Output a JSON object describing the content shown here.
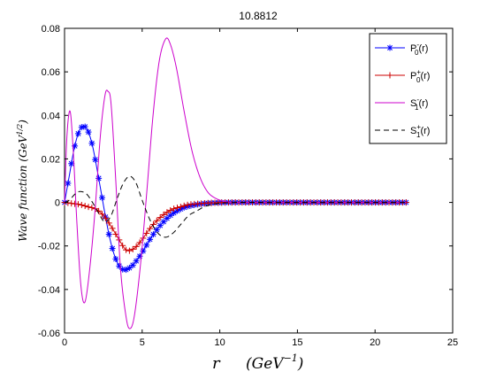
{
  "chart_data": {
    "type": "line",
    "title": "10.8812",
    "xlabel": "r (GeV^-1)",
    "ylabel": "Wave function (GeV^1/2)",
    "xlim": [
      0,
      25
    ],
    "ylim": [
      -0.06,
      0.08
    ],
    "xticks": [
      "0",
      "5",
      "10",
      "15",
      "20",
      "25"
    ],
    "yticks": [
      "-0.06",
      "-0.04",
      "-0.02",
      "0",
      "0.02",
      "0.04",
      "0.06",
      "0.08"
    ],
    "grid": false,
    "legend": "top-right",
    "series": [
      {
        "name": "P0-(r)",
        "name_main": "P",
        "name_sup": "-",
        "name_sub": "0",
        "name_arg": "(r)",
        "color": "#0000ff",
        "line": "solid",
        "marker": "star",
        "points": [
          [
            0,
            0
          ],
          [
            0.3,
            0.012
          ],
          [
            0.6,
            0.024
          ],
          [
            0.9,
            0.032
          ],
          [
            1.2,
            0.035
          ],
          [
            1.5,
            0.033
          ],
          [
            1.8,
            0.026
          ],
          [
            2.1,
            0.015
          ],
          [
            2.4,
            0.003
          ],
          [
            2.7,
            -0.009
          ],
          [
            3.0,
            -0.019
          ],
          [
            3.3,
            -0.026
          ],
          [
            3.6,
            -0.03
          ],
          [
            3.9,
            -0.031
          ],
          [
            4.2,
            -0.03
          ],
          [
            4.5,
            -0.028
          ],
          [
            5.0,
            -0.023
          ],
          [
            5.5,
            -0.017
          ],
          [
            6.0,
            -0.012
          ],
          [
            6.5,
            -0.008
          ],
          [
            7.0,
            -0.005
          ],
          [
            7.5,
            -0.003
          ],
          [
            8.0,
            -0.0017
          ],
          [
            9.0,
            -0.0005
          ],
          [
            10.0,
            -0.0001
          ],
          [
            11.0,
            0
          ],
          [
            13,
            0
          ],
          [
            15,
            0
          ],
          [
            17,
            0
          ],
          [
            19,
            0
          ],
          [
            21,
            0
          ],
          [
            22,
            0
          ]
        ]
      },
      {
        "name": "P0+(r)",
        "name_main": "P",
        "name_sup": "+",
        "name_sub": "0",
        "name_arg": "(r)",
        "color": "#cc0000",
        "line": "solid",
        "marker": "plus",
        "points": [
          [
            0,
            0
          ],
          [
            0.5,
            -0.0005
          ],
          [
            1.0,
            -0.001
          ],
          [
            1.5,
            -0.002
          ],
          [
            2.0,
            -0.003
          ],
          [
            2.5,
            -0.006
          ],
          [
            3.0,
            -0.011
          ],
          [
            3.5,
            -0.017
          ],
          [
            4.0,
            -0.022
          ],
          [
            4.5,
            -0.021
          ],
          [
            5.0,
            -0.017
          ],
          [
            5.5,
            -0.012
          ],
          [
            6.0,
            -0.008
          ],
          [
            6.5,
            -0.005
          ],
          [
            7.0,
            -0.003
          ],
          [
            7.5,
            -0.002
          ],
          [
            8.0,
            -0.001
          ],
          [
            9.0,
            -0.0004
          ],
          [
            10.0,
            -0.0001
          ],
          [
            11.0,
            0
          ],
          [
            13,
            0
          ],
          [
            15,
            0
          ],
          [
            17,
            0
          ],
          [
            19,
            0
          ],
          [
            21,
            0
          ],
          [
            22,
            0
          ]
        ]
      },
      {
        "name": "S1-(r)",
        "name_main": "S",
        "name_sup": "-",
        "name_sub": "1",
        "name_arg": "(r)",
        "color": "#cc00cc",
        "line": "solid",
        "marker": "none",
        "points": [
          [
            0,
            0
          ],
          [
            0.15,
            0.03
          ],
          [
            0.35,
            0.042
          ],
          [
            0.55,
            0.025
          ],
          [
            0.8,
            -0.01
          ],
          [
            1.05,
            -0.038
          ],
          [
            1.3,
            -0.046
          ],
          [
            1.6,
            -0.032
          ],
          [
            1.95,
            -0.005
          ],
          [
            2.3,
            0.03
          ],
          [
            2.6,
            0.049
          ],
          [
            2.8,
            0.051
          ],
          [
            3.0,
            0.045
          ],
          [
            3.3,
            0.01
          ],
          [
            3.6,
            -0.03
          ],
          [
            3.95,
            -0.052
          ],
          [
            4.2,
            -0.058
          ],
          [
            4.5,
            -0.052
          ],
          [
            4.9,
            -0.028
          ],
          [
            5.3,
            0.005
          ],
          [
            5.7,
            0.04
          ],
          [
            6.1,
            0.065
          ],
          [
            6.5,
            0.075
          ],
          [
            6.8,
            0.073
          ],
          [
            7.2,
            0.062
          ],
          [
            7.7,
            0.042
          ],
          [
            8.2,
            0.024
          ],
          [
            8.7,
            0.012
          ],
          [
            9.2,
            0.005
          ],
          [
            9.7,
            0.002
          ],
          [
            10.3,
            0.0005
          ],
          [
            11,
            0
          ],
          [
            13,
            0
          ],
          [
            15,
            0
          ],
          [
            17,
            0
          ],
          [
            19,
            0
          ],
          [
            21,
            0
          ],
          [
            22,
            0
          ]
        ]
      },
      {
        "name": "S1+(r)",
        "name_main": "S",
        "name_sup": "+",
        "name_sub": "1",
        "name_arg": "(r)",
        "color": "#000000",
        "line": "dashed",
        "marker": "none",
        "points": [
          [
            0,
            0
          ],
          [
            0.3,
            0.001
          ],
          [
            0.7,
            0.004
          ],
          [
            1.0,
            0.005
          ],
          [
            1.4,
            0.004
          ],
          [
            1.8,
            0.0
          ],
          [
            2.2,
            -0.005
          ],
          [
            2.6,
            -0.009
          ],
          [
            3.0,
            -0.006
          ],
          [
            3.4,
            0.002
          ],
          [
            3.8,
            0.009
          ],
          [
            4.2,
            0.012
          ],
          [
            4.6,
            0.009
          ],
          [
            5.0,
            0.001
          ],
          [
            5.5,
            -0.008
          ],
          [
            6.0,
            -0.014
          ],
          [
            6.5,
            -0.016
          ],
          [
            7.0,
            -0.014
          ],
          [
            7.5,
            -0.01
          ],
          [
            8.0,
            -0.006
          ],
          [
            8.5,
            -0.004
          ],
          [
            9.0,
            -0.002
          ],
          [
            9.5,
            -0.001
          ],
          [
            10,
            -0.0004
          ],
          [
            11,
            0
          ],
          [
            13,
            0
          ],
          [
            15,
            0
          ],
          [
            17,
            0
          ],
          [
            19,
            0
          ],
          [
            21,
            0
          ],
          [
            22,
            0
          ]
        ]
      }
    ]
  }
}
